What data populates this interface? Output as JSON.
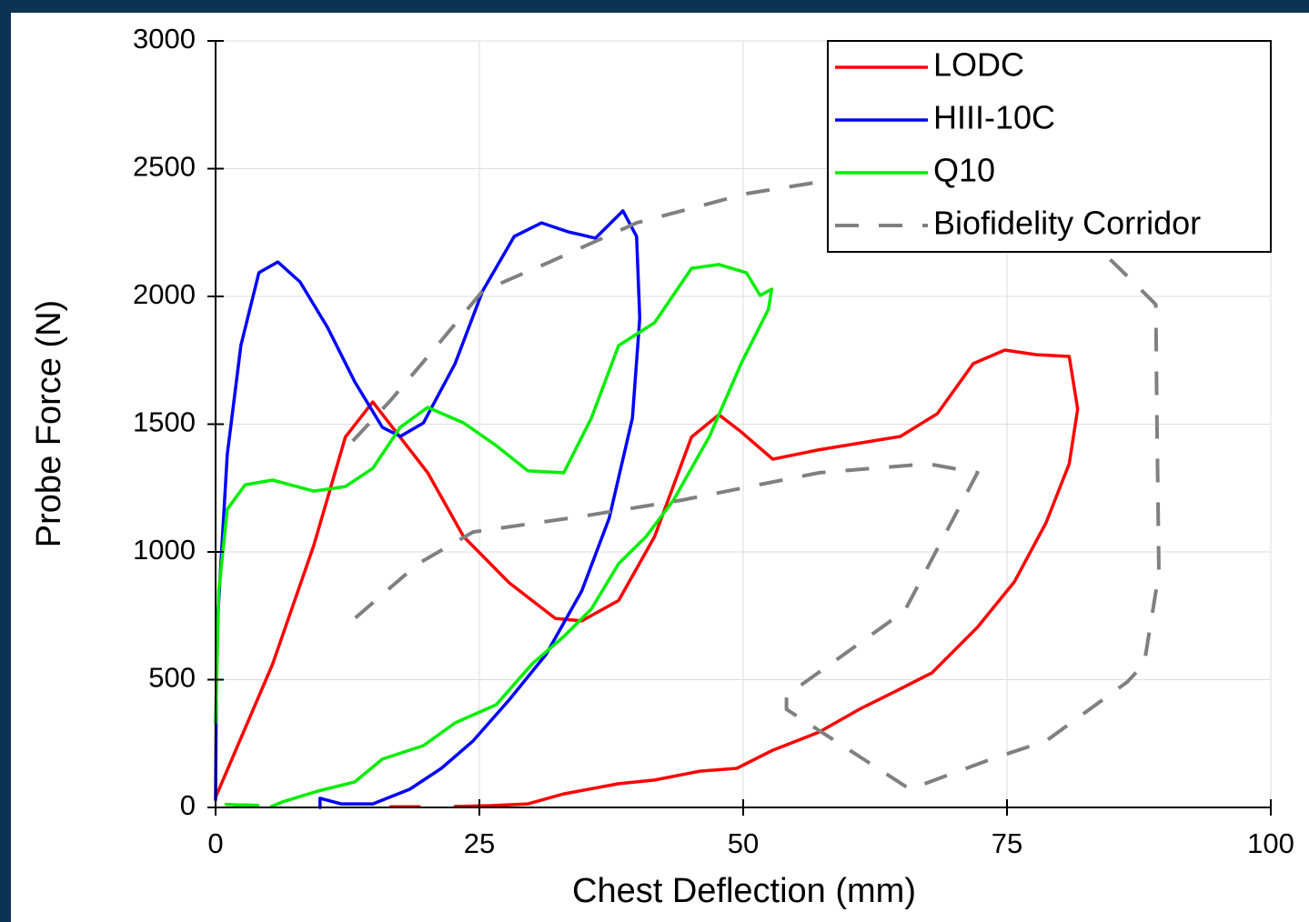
{
  "chart_data": {
    "type": "line",
    "x_label": "Chest Deflection (mm)",
    "y_label": "Probe Force (N)",
    "xlim": [
      0,
      100
    ],
    "xticks": [
      0,
      25,
      50,
      75,
      100
    ],
    "ylim": [
      0,
      3000
    ],
    "yticks": [
      0,
      500,
      1000,
      1500,
      2000,
      2500,
      3000
    ],
    "grid": true,
    "legend": "upper right",
    "series": [
      {
        "name": "LODC",
        "color": "#ff0000",
        "x": [
          0,
          5.4,
          9.3,
          12.3,
          14.9,
          20.1,
          23.5,
          27.8,
          32.2,
          34.7,
          38.2,
          41.6,
          45.1,
          47.7,
          49.8,
          52.8,
          57.2,
          60.6,
          64.9,
          68.4,
          71.8,
          74.8,
          77.8,
          80.9,
          81.7,
          80.9,
          78.7,
          75.7,
          72.2,
          67.9,
          64.5,
          61.0,
          57.2,
          52.8,
          49.4,
          45.9,
          41.6,
          38.2,
          33.0,
          29.6,
          26.1,
          22.7,
          null,
          16.6,
          19.3
        ],
        "y": [
          40,
          560,
          1025,
          1450,
          1587,
          1310,
          1060,
          880,
          740,
          730,
          810,
          1060,
          1450,
          1537,
          1470,
          1363,
          1400,
          1423,
          1452,
          1541,
          1737,
          1790,
          1772,
          1765,
          1559,
          1345,
          1114,
          883,
          705,
          527,
          456,
          384,
          295,
          224,
          153,
          142,
          107,
          93,
          53,
          14,
          7,
          4,
          null,
          3,
          3
        ]
      },
      {
        "name": "HIII-10C",
        "color": "#0000ff",
        "x": [
          0,
          0.1,
          1.1,
          2.4,
          4.1,
          5.9,
          8.0,
          10.6,
          13.2,
          15.8,
          17.5,
          19.7,
          22.7,
          25.3,
          28.3,
          30.9,
          33.4,
          36.0,
          38.6,
          39.9,
          40.2,
          39.5,
          37.3,
          34.7,
          31.3,
          27.8,
          24.4,
          21.4,
          18.4,
          14.9,
          11.9,
          9.9,
          9.9
        ],
        "y": [
          30,
          670,
          1380,
          1808,
          2093,
          2135,
          2057,
          1879,
          1665,
          1488,
          1452,
          1505,
          1737,
          2021,
          2235,
          2288,
          2253,
          2228,
          2335,
          2235,
          1915,
          1523,
          1132,
          847,
          598,
          420,
          260,
          153,
          71,
          14,
          14,
          36,
          0
        ]
      },
      {
        "name": "Q10",
        "color": "#00ee00",
        "x": [
          0,
          0.3,
          1.1,
          2.8,
          5.4,
          9.3,
          12.3,
          14.9,
          17.5,
          20.1,
          23.5,
          26.6,
          29.6,
          33.0,
          35.6,
          38.2,
          41.6,
          45.1,
          47.7,
          50.3,
          51.6,
          52.7,
          52.4,
          49.8,
          46.8,
          43.4,
          40.8,
          38.2,
          35.6,
          33.0,
          30.0,
          26.6,
          22.7,
          19.7,
          15.8,
          13.2,
          9.7,
          6.3,
          5.3,
          null,
          1,
          2,
          3,
          4
        ],
        "y": [
          330,
          847,
          1167,
          1263,
          1281,
          1238,
          1256,
          1327,
          1488,
          1566,
          1505,
          1416,
          1317,
          1310,
          1523,
          1808,
          1897,
          2110,
          2125,
          2093,
          2004,
          2028,
          1950,
          1737,
          1452,
          1203,
          1060,
          954,
          776,
          669,
          562,
          402,
          331,
          242,
          189,
          100,
          64,
          21,
          4,
          null,
          12,
          10,
          10,
          8
        ]
      },
      {
        "name": "Biofidelity Corridor",
        "color": "#808080",
        "dashed": true,
        "x": [
          13.0,
          16.6,
          21.0,
          25.3,
          31.3,
          39.9,
          50.3,
          57.2,
          65.8,
          74.4,
          84.3,
          87.4,
          89.1,
          89.2,
          89.4,
          88.0,
          86.4,
          78.7,
          73.5,
          65.8,
          54.1,
          54.1,
          65.3,
          72.2,
          67.5,
          57.2,
          44.2,
          34.7,
          24.4,
          19.2,
          13.0
        ],
        "y": [
          1434,
          1594,
          1808,
          2021,
          2128,
          2288,
          2402,
          2448,
          2484,
          2466,
          2164,
          2039,
          1968,
          1559,
          918,
          562,
          491,
          260,
          189,
          71,
          384,
          438,
          769,
          1310,
          1345,
          1310,
          1203,
          1139,
          1078,
          954,
          733
        ]
      }
    ]
  }
}
